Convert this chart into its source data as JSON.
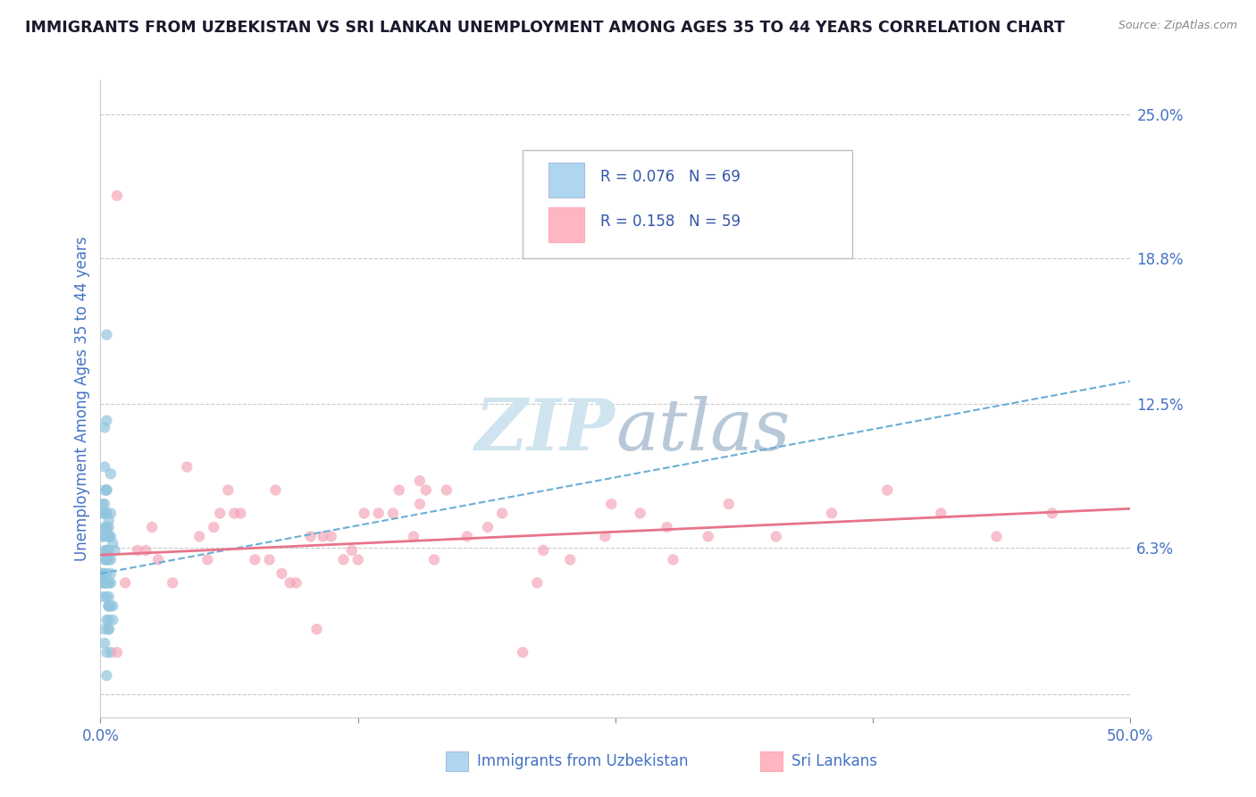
{
  "title": "IMMIGRANTS FROM UZBEKISTAN VS SRI LANKAN UNEMPLOYMENT AMONG AGES 35 TO 44 YEARS CORRELATION CHART",
  "source": "Source: ZipAtlas.com",
  "ylabel": "Unemployment Among Ages 35 to 44 years",
  "yticks": [
    0.0,
    0.063,
    0.125,
    0.188,
    0.25
  ],
  "ytick_labels": [
    "",
    "6.3%",
    "12.5%",
    "18.8%",
    "25.0%"
  ],
  "xlim": [
    0.0,
    0.5
  ],
  "ylim": [
    -0.01,
    0.265
  ],
  "legend_label1": "Immigrants from Uzbekistan",
  "legend_label2": "Sri Lankans",
  "R1": 0.076,
  "N1": 69,
  "R2": 0.158,
  "N2": 59,
  "color1": "#92C5DE",
  "color2": "#F4A7B9",
  "trend1_color": "#6AAED6",
  "trend2_color": "#E8748A",
  "bg_color": "#FFFFFF",
  "grid_color": "#BBBBBB",
  "title_color": "#1A1A2E",
  "tick_color": "#4472C4",
  "watermark_color": "#D0E4F0",
  "scatter1_x": [
    0.003,
    0.005,
    0.002,
    0.004,
    0.006,
    0.001,
    0.003,
    0.004,
    0.007,
    0.002,
    0.001,
    0.003,
    0.002,
    0.004,
    0.003,
    0.005,
    0.002,
    0.006,
    0.001,
    0.003,
    0.004,
    0.002,
    0.003,
    0.005,
    0.004,
    0.003,
    0.002,
    0.004,
    0.003,
    0.001,
    0.005,
    0.003,
    0.004,
    0.002,
    0.003,
    0.006,
    0.002,
    0.004,
    0.003,
    0.001,
    0.002,
    0.004,
    0.003,
    0.005,
    0.002,
    0.003,
    0.004,
    0.001,
    0.003,
    0.004,
    0.002,
    0.003,
    0.004,
    0.005,
    0.003,
    0.001,
    0.002,
    0.004,
    0.003,
    0.005,
    0.002,
    0.003,
    0.004,
    0.001,
    0.003,
    0.005,
    0.002,
    0.004,
    0.003
  ],
  "scatter1_y": [
    0.155,
    0.095,
    0.115,
    0.075,
    0.065,
    0.048,
    0.058,
    0.072,
    0.062,
    0.098,
    0.052,
    0.118,
    0.078,
    0.058,
    0.048,
    0.068,
    0.088,
    0.038,
    0.078,
    0.058,
    0.068,
    0.048,
    0.042,
    0.052,
    0.062,
    0.072,
    0.082,
    0.048,
    0.058,
    0.068,
    0.038,
    0.078,
    0.042,
    0.052,
    0.088,
    0.032,
    0.062,
    0.048,
    0.068,
    0.052,
    0.058,
    0.038,
    0.072,
    0.048,
    0.028,
    0.062,
    0.038,
    0.082,
    0.032,
    0.068,
    0.048,
    0.078,
    0.038,
    0.058,
    0.018,
    0.068,
    0.048,
    0.028,
    0.052,
    0.078,
    0.022,
    0.062,
    0.032,
    0.042,
    0.088,
    0.018,
    0.072,
    0.028,
    0.008
  ],
  "scatter2_x": [
    0.008,
    0.025,
    0.042,
    0.058,
    0.075,
    0.092,
    0.108,
    0.125,
    0.142,
    0.158,
    0.018,
    0.035,
    0.052,
    0.068,
    0.085,
    0.102,
    0.118,
    0.135,
    0.152,
    0.168,
    0.012,
    0.028,
    0.048,
    0.065,
    0.082,
    0.095,
    0.112,
    0.128,
    0.145,
    0.162,
    0.178,
    0.195,
    0.212,
    0.228,
    0.245,
    0.262,
    0.278,
    0.295,
    0.062,
    0.155,
    0.022,
    0.055,
    0.088,
    0.122,
    0.155,
    0.188,
    0.215,
    0.248,
    0.275,
    0.305,
    0.328,
    0.355,
    0.382,
    0.408,
    0.435,
    0.462,
    0.008,
    0.105,
    0.205
  ],
  "scatter2_y": [
    0.215,
    0.072,
    0.098,
    0.078,
    0.058,
    0.048,
    0.068,
    0.058,
    0.078,
    0.088,
    0.062,
    0.048,
    0.058,
    0.078,
    0.088,
    0.068,
    0.058,
    0.078,
    0.068,
    0.088,
    0.048,
    0.058,
    0.068,
    0.078,
    0.058,
    0.048,
    0.068,
    0.078,
    0.088,
    0.058,
    0.068,
    0.078,
    0.048,
    0.058,
    0.068,
    0.078,
    0.058,
    0.068,
    0.088,
    0.092,
    0.062,
    0.072,
    0.052,
    0.062,
    0.082,
    0.072,
    0.062,
    0.082,
    0.072,
    0.082,
    0.068,
    0.078,
    0.088,
    0.078,
    0.068,
    0.078,
    0.018,
    0.028,
    0.018
  ],
  "trend1_x0": 0.0,
  "trend1_y0": 0.052,
  "trend1_x1": 0.5,
  "trend1_y1": 0.135,
  "trend2_x0": 0.0,
  "trend2_y0": 0.06,
  "trend2_x1": 0.5,
  "trend2_y1": 0.08
}
